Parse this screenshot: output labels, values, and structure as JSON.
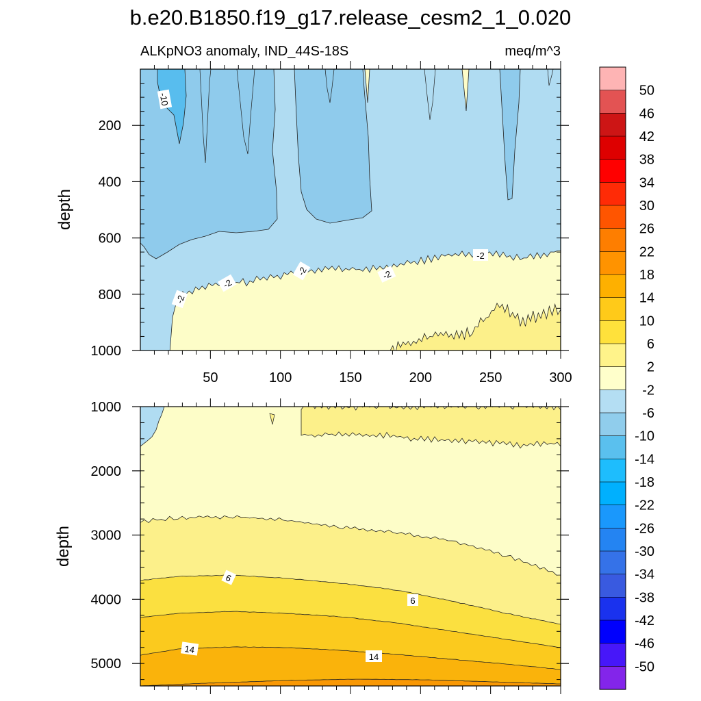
{
  "title": "b.e20.B1850.f19_g17.release_cesm2_1_0.020",
  "subtitle_left": "ALKpNO3 anomaly, IND_44S-18S",
  "subtitle_right": "meq/m^3",
  "chart_data": {
    "type": "heatmap",
    "description_units": "meq/m^3",
    "x_range": [
      0,
      300
    ],
    "x_tick_labels": [
      "50",
      "100",
      "150",
      "200",
      "250",
      "300"
    ],
    "y_label": "depth",
    "panels": [
      {
        "name": "upper",
        "ylim": [
          0,
          1000
        ],
        "y_tick_labels": [
          "200",
          "400",
          "600",
          "800",
          "1000"
        ],
        "y_ticks": [
          200,
          400,
          600,
          800,
          1000
        ],
        "contour_labels": [
          "-10",
          "-2",
          "-2",
          "-2",
          "-2",
          "-2"
        ],
        "regions": [
          {
            "level": "-6 to -2",
            "color": "#b0dcf2"
          },
          {
            "level": "-10 to -6",
            "color": "#8fcbec"
          },
          {
            "level": "-14 to -10",
            "color": "#58bdee"
          },
          {
            "level": "-2 to 2",
            "color": "#fdfdc8"
          },
          {
            "level": "2 to 6",
            "color": "#fcf08a"
          }
        ]
      },
      {
        "name": "lower",
        "ylim": [
          1000,
          5350
        ],
        "y_tick_labels": [
          "1000",
          "2000",
          "3000",
          "4000",
          "5000"
        ],
        "y_ticks": [
          1000,
          2000,
          3000,
          4000,
          5000
        ],
        "contour_labels": [
          "6",
          "6",
          "14",
          "14"
        ],
        "regions": [
          {
            "level": "-2 to 2",
            "color": "#fdfdc8"
          },
          {
            "level": "2 to 6",
            "color": "#fcf08a"
          },
          {
            "level": "6 to 10",
            "color": "#fbe040"
          },
          {
            "level": "10 to 14",
            "color": "#fbca1e"
          },
          {
            "level": "14 to 18",
            "color": "#fab30b"
          },
          {
            "level": "18 to 22",
            "color": "#f99804"
          }
        ]
      }
    ],
    "colorbar": {
      "labels": [
        "50",
        "46",
        "42",
        "38",
        "34",
        "30",
        "26",
        "22",
        "18",
        "14",
        "10",
        "6",
        "2",
        "-2",
        "-6",
        "-10",
        "-14",
        "-18",
        "-22",
        "-26",
        "-30",
        "-34",
        "-38",
        "-42",
        "-46",
        "-50"
      ],
      "colors": [
        "#feb4b4",
        "#e35353",
        "#cd1515",
        "#de0000",
        "#ff0000",
        "#ff2b06",
        "#ff5500",
        "#fe7e00",
        "#ff9300",
        "#feb000",
        "#ffca19",
        "#ffe13b",
        "#fff38a",
        "#ffffcb",
        "#b4def3",
        "#90cdec",
        "#5ac0ee",
        "#1ebdfd",
        "#00b0fe",
        "#1a98fc",
        "#2484f2",
        "#3572e8",
        "#395ae0",
        "#1a32ee",
        "#0000fd",
        "#4717f9",
        "#8325ea"
      ]
    }
  }
}
